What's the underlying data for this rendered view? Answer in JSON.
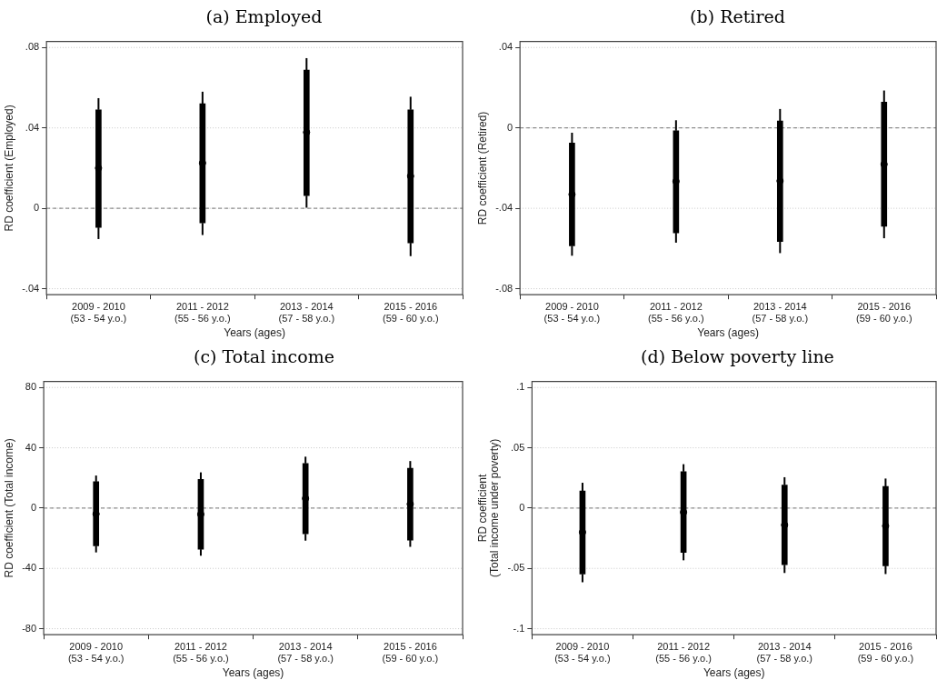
{
  "chart_data": [
    {
      "type": "box",
      "title": "(a) Employed",
      "xlabel": "Years (ages)",
      "ylabel": "RD coefficient (Employed)",
      "categories": [
        "2009 - 2010\n(53 - 54 y.o.)",
        "2011 - 2012\n(55 - 56 y.o.)",
        "2013 - 2014\n(57 - 58 y.o.)",
        "2015 - 2016\n(59 - 60 y.o.)"
      ],
      "boxes": [
        {
          "low": -0.0153,
          "q1": -0.0095,
          "median": 0.02,
          "q3": 0.049,
          "high": 0.0548
        },
        {
          "low": -0.0133,
          "q1": -0.0073,
          "median": 0.0225,
          "q3": 0.052,
          "high": 0.058
        },
        {
          "low": 0.0003,
          "q1": 0.0063,
          "median": 0.0378,
          "q3": 0.0688,
          "high": 0.0747
        },
        {
          "low": -0.0238,
          "q1": -0.0172,
          "median": 0.016,
          "q3": 0.049,
          "high": 0.0555
        }
      ],
      "ylim": [
        -0.043,
        0.083
      ],
      "yticks": [
        {
          "value": -0.04,
          "label": "-.04"
        },
        0,
        {
          "value": 0.04,
          "label": ".04"
        },
        {
          "value": 0.08,
          "label": ".08"
        }
      ],
      "grid": "y",
      "ref_lines": [
        {
          "axis": "y",
          "value": 0,
          "line_style": "dashed"
        }
      ]
    },
    {
      "type": "box",
      "title": "(b) Retired",
      "xlabel": "Years (ages)",
      "ylabel": "RD coefficient (Retired)",
      "categories": [
        "2009 - 2010\n(53 - 54 y.o.)",
        "2011 - 2012\n(55 - 56 y.o.)",
        "2013 - 2014\n(57 - 58 y.o.)",
        "2015 - 2016\n(59 - 60 y.o.)"
      ],
      "boxes": [
        {
          "low": -0.0636,
          "q1": -0.0587,
          "median": -0.0331,
          "q3": -0.0075,
          "high": -0.0024
        },
        {
          "low": -0.0571,
          "q1": -0.0522,
          "median": -0.0266,
          "q3": -0.0014,
          "high": 0.0038
        },
        {
          "low": -0.0623,
          "q1": -0.0565,
          "median": -0.0264,
          "q3": 0.0034,
          "high": 0.0094
        },
        {
          "low": -0.0549,
          "q1": -0.049,
          "median": -0.0181,
          "q3": 0.0128,
          "high": 0.0186
        }
      ],
      "ylim": [
        -0.083,
        0.043
      ],
      "yticks": [
        {
          "value": -0.08,
          "label": "-.08"
        },
        {
          "value": -0.04,
          "label": "-.04"
        },
        0,
        {
          "value": 0.04,
          "label": ".04"
        }
      ],
      "grid": "y",
      "ref_lines": [
        {
          "axis": "y",
          "value": 0,
          "line_style": "dashed"
        }
      ]
    },
    {
      "type": "box",
      "title": "(c) Total income",
      "xlabel": "Years (ages)",
      "ylabel": "RD coefficient (Total income)",
      "categories": [
        "2009 - 2010\n(53 - 54 y.o.)",
        "2011 - 2012\n(55 - 56 y.o.)",
        "2013 - 2014\n(57 - 58 y.o.)",
        "2015 - 2016\n(59 - 60 y.o.)"
      ],
      "boxes": [
        {
          "low": -29.4,
          "q1": -25,
          "median": -3.9,
          "q3": 17.5,
          "high": 21.6
        },
        {
          "low": -31.6,
          "q1": -27.3,
          "median": -4.1,
          "q3": 19.1,
          "high": 23.7
        },
        {
          "low": -21.6,
          "q1": -17.1,
          "median": 6.4,
          "q3": 29.6,
          "high": 34.1
        },
        {
          "low": -25.7,
          "q1": -21.2,
          "median": 2.7,
          "q3": 26.4,
          "high": 31.2
        }
      ],
      "ylim": [
        -84,
        84
      ],
      "yticks": [
        -80,
        -40,
        0,
        40,
        80
      ],
      "grid": "y",
      "ref_lines": [
        {
          "axis": "y",
          "value": 0,
          "line_style": "dashed"
        }
      ]
    },
    {
      "type": "box",
      "title": "(d) Below poverty line",
      "xlabel": "Years (ages)",
      "ylabel": "RD coefficient\n(Total income under poverty)",
      "categories": [
        "2009 - 2010\n(53 - 54 y.o.)",
        "2011 - 2012\n(55 - 56 y.o.)",
        "2013 - 2014\n(57 - 58 y.o.)",
        "2015 - 2016\n(59 - 60 y.o.)"
      ],
      "boxes": [
        {
          "low": -0.0615,
          "q1": -0.0547,
          "median": -0.02,
          "q3": 0.0142,
          "high": 0.021
        },
        {
          "low": -0.0433,
          "q1": -0.0367,
          "median": -0.0034,
          "q3": 0.0302,
          "high": 0.0364
        },
        {
          "low": -0.0538,
          "q1": -0.047,
          "median": -0.014,
          "q3": 0.0191,
          "high": 0.0256
        },
        {
          "low": -0.0547,
          "q1": -0.0478,
          "median": -0.0148,
          "q3": 0.018,
          "high": 0.0245
        }
      ],
      "ylim": [
        -0.105,
        0.105
      ],
      "yticks": [
        {
          "value": -0.1,
          "label": "-.1"
        },
        {
          "value": -0.05,
          "label": "-.05"
        },
        0,
        {
          "value": 0.05,
          "label": ".05"
        },
        {
          "value": 0.1,
          "label": ".1"
        }
      ],
      "grid": "y",
      "ref_lines": [
        {
          "axis": "y",
          "value": 0,
          "line_style": "dashed"
        }
      ]
    }
  ]
}
